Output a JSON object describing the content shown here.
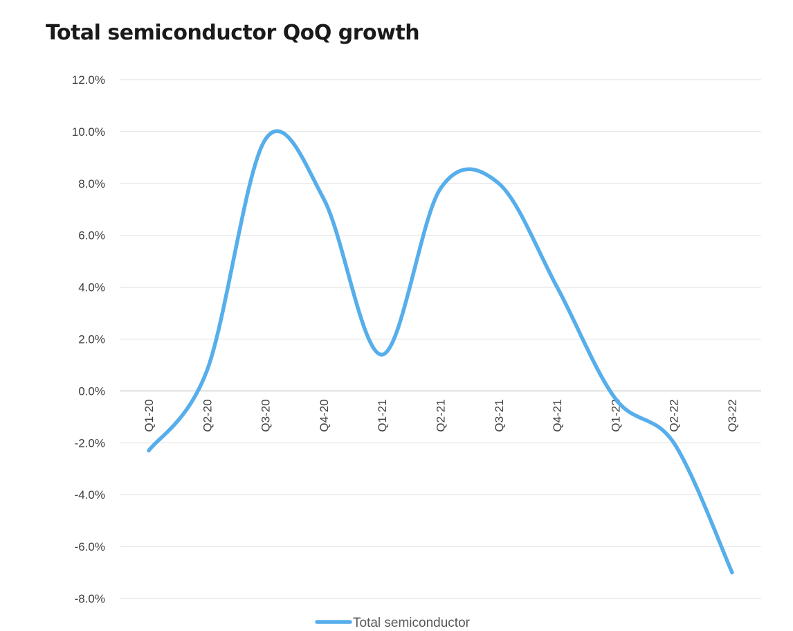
{
  "chart_data": {
    "type": "line",
    "title": "Total semiconductor QoQ growth",
    "xlabel": "",
    "ylabel": "",
    "categories": [
      "Q1-20",
      "Q2-20",
      "Q3-20",
      "Q4-20",
      "Q1-21",
      "Q2-21",
      "Q3-21",
      "Q4-21",
      "Q1-22",
      "Q2-22",
      "Q3-22"
    ],
    "series": [
      {
        "name": "Total semiconductor",
        "values": [
          -2.3,
          0.8,
          9.7,
          7.4,
          1.4,
          7.8,
          8.0,
          4.0,
          -0.3,
          -2.0,
          -7.0
        ],
        "color": "#56aeeb"
      }
    ],
    "ylim": [
      -8.0,
      12.0
    ],
    "yticks": [
      "12.0%",
      "10.0%",
      "8.0%",
      "6.0%",
      "4.0%",
      "2.0%",
      "0.0%",
      "-2.0%",
      "-4.0%",
      "-6.0%",
      "-8.0%"
    ],
    "grid": true,
    "smooth": true,
    "legend_position": "bottom"
  }
}
